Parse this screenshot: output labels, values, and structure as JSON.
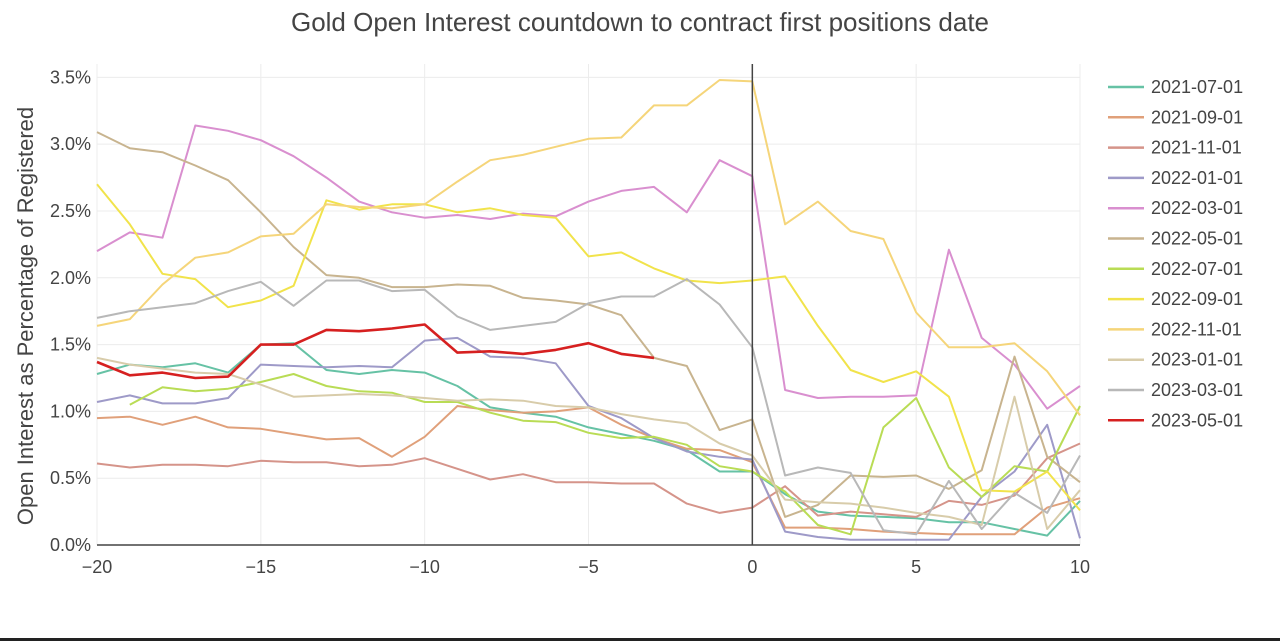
{
  "chart_data": {
    "type": "line",
    "title": "Gold Open Interest countdown to contract first positions date",
    "xlabel": "",
    "ylabel": "Open Interest as Percentage of Registered",
    "xlim": [
      -20,
      10
    ],
    "ylim": [
      0,
      3.6
    ],
    "x_ticks": [
      -20,
      -15,
      -10,
      -5,
      0,
      5,
      10
    ],
    "x_tick_labels": [
      "−20",
      "−15",
      "−10",
      "−5",
      "0",
      "5",
      "10"
    ],
    "y_ticks": [
      0,
      0.5,
      1.0,
      1.5,
      2.0,
      2.5,
      3.0,
      3.5
    ],
    "y_tick_labels": [
      "0.0%",
      "0.5%",
      "1.0%",
      "1.5%",
      "2.0%",
      "2.5%",
      "3.0%",
      "3.5%"
    ],
    "grid": true,
    "vertical_line_at": 0,
    "legend_position": "right",
    "series": [
      {
        "name": "2021-07-01",
        "color": "#66c2a5",
        "x": [
          -20,
          -19,
          -18,
          -17,
          -16,
          -15,
          -14,
          -13,
          -12,
          -11,
          -10,
          -9,
          -8,
          -7,
          -6,
          -5,
          -4,
          -3,
          -2,
          -1,
          0,
          1,
          2,
          3,
          4,
          5,
          6,
          7,
          8,
          9,
          10
        ],
        "values": [
          1.28,
          1.35,
          1.33,
          1.36,
          1.29,
          1.5,
          1.51,
          1.31,
          1.28,
          1.31,
          1.29,
          1.19,
          1.03,
          0.99,
          0.96,
          0.88,
          0.83,
          0.78,
          0.71,
          0.55,
          0.55,
          0.38,
          0.25,
          0.22,
          0.21,
          0.2,
          0.17,
          0.17,
          0.12,
          0.07,
          0.33
        ]
      },
      {
        "name": "2021-09-01",
        "color": "#e0a07a",
        "x": [
          -20,
          -19,
          -18,
          -17,
          -16,
          -15,
          -14,
          -13,
          -12,
          -11,
          -10,
          -9,
          -8,
          -7,
          -6,
          -5,
          -4,
          -3,
          -2,
          -1,
          0,
          1,
          2,
          3,
          4,
          5,
          6,
          7,
          8,
          9,
          10
        ],
        "values": [
          0.95,
          0.96,
          0.9,
          0.96,
          0.88,
          0.87,
          0.83,
          0.79,
          0.8,
          0.66,
          0.81,
          1.04,
          1.01,
          0.99,
          1.0,
          1.03,
          0.9,
          0.8,
          0.72,
          0.71,
          0.62,
          0.13,
          0.13,
          0.12,
          0.1,
          0.09,
          0.08,
          0.08,
          0.08,
          0.28,
          0.35
        ]
      },
      {
        "name": "2021-11-01",
        "color": "#d5948a",
        "x": [
          -20,
          -19,
          -18,
          -17,
          -16,
          -15,
          -14,
          -13,
          -12,
          -11,
          -10,
          -9,
          -8,
          -7,
          -6,
          -5,
          -4,
          -3,
          -2,
          -1,
          0,
          1,
          2,
          3,
          4,
          5,
          6,
          7,
          8,
          9,
          10
        ],
        "values": [
          0.61,
          0.58,
          0.6,
          0.6,
          0.59,
          0.63,
          0.62,
          0.62,
          0.59,
          0.6,
          0.65,
          0.57,
          0.49,
          0.53,
          0.47,
          0.47,
          0.46,
          0.46,
          0.31,
          0.24,
          0.28,
          0.44,
          0.22,
          0.25,
          0.23,
          0.21,
          0.33,
          0.3,
          0.37,
          0.65,
          0.76
        ]
      },
      {
        "name": "2022-01-01",
        "color": "#9e9ac8",
        "x": [
          -20,
          -19,
          -18,
          -17,
          -16,
          -15,
          -14,
          -13,
          -12,
          -11,
          -10,
          -9,
          -8,
          -7,
          -6,
          -5,
          -4,
          -3,
          -2,
          -1,
          0,
          1,
          2,
          3,
          4,
          5,
          6,
          7,
          8,
          9,
          10
        ],
        "values": [
          1.07,
          1.12,
          1.06,
          1.06,
          1.1,
          1.35,
          1.34,
          1.33,
          1.34,
          1.33,
          1.53,
          1.55,
          1.41,
          1.4,
          1.36,
          1.04,
          0.95,
          0.8,
          0.7,
          0.66,
          0.64,
          0.1,
          0.06,
          0.04,
          0.04,
          0.04,
          0.04,
          0.36,
          0.55,
          0.9,
          0.05
        ]
      },
      {
        "name": "2022-03-01",
        "color": "#d98fcf",
        "x": [
          -20,
          -19,
          -18,
          -17,
          -16,
          -15,
          -14,
          -13,
          -12,
          -11,
          -10,
          -9,
          -8,
          -7,
          -6,
          -5,
          -4,
          -3,
          -2,
          -1,
          0,
          1,
          2,
          3,
          4,
          5,
          6,
          7,
          8,
          9,
          10
        ],
        "values": [
          2.2,
          2.34,
          2.3,
          3.14,
          3.1,
          3.03,
          2.91,
          2.75,
          2.57,
          2.49,
          2.45,
          2.47,
          2.44,
          2.48,
          2.46,
          2.57,
          2.65,
          2.68,
          2.49,
          2.88,
          2.76,
          1.16,
          1.1,
          1.11,
          1.11,
          1.12,
          2.21,
          1.55,
          1.35,
          1.02,
          1.19
        ]
      },
      {
        "name": "2022-05-01",
        "color": "#c8b48f",
        "x": [
          -20,
          -19,
          -18,
          -17,
          -16,
          -15,
          -14,
          -13,
          -12,
          -11,
          -10,
          -9,
          -8,
          -7,
          -6,
          -5,
          -4,
          -3,
          -2,
          -1,
          0,
          1,
          2,
          3,
          4,
          5,
          6,
          7,
          8,
          9,
          10
        ],
        "values": [
          3.09,
          2.97,
          2.94,
          2.84,
          2.73,
          2.49,
          2.23,
          2.02,
          2.0,
          1.93,
          1.93,
          1.95,
          1.94,
          1.85,
          1.83,
          1.8,
          1.72,
          1.4,
          1.34,
          0.86,
          0.94,
          0.21,
          0.3,
          0.52,
          0.51,
          0.52,
          0.42,
          0.56,
          1.41,
          0.66,
          0.47
        ]
      },
      {
        "name": "2022-07-01",
        "color": "#b9dc55",
        "x": [
          -19,
          -18,
          -17,
          -16,
          -15,
          -14,
          -13,
          -12,
          -11,
          -10,
          -9,
          -8,
          -7,
          -6,
          -5,
          -4,
          -3,
          -2,
          -1,
          0,
          1,
          2,
          3,
          4,
          5,
          6,
          7,
          8,
          9,
          10
        ],
        "values": [
          1.05,
          1.18,
          1.15,
          1.17,
          1.22,
          1.28,
          1.19,
          1.15,
          1.14,
          1.07,
          1.07,
          0.99,
          0.93,
          0.92,
          0.84,
          0.8,
          0.81,
          0.75,
          0.59,
          0.55,
          0.4,
          0.15,
          0.08,
          0.88,
          1.1,
          0.58,
          0.36,
          0.59,
          0.55,
          1.04
        ]
      },
      {
        "name": "2022-09-01",
        "color": "#f1e34b",
        "x": [
          -20,
          -19,
          -18,
          -17,
          -16,
          -15,
          -14,
          -13,
          -12,
          -11,
          -10,
          -9,
          -8,
          -7,
          -6,
          -5,
          -4,
          -3,
          -2,
          -1,
          0,
          1,
          2,
          3,
          4,
          5,
          6,
          7,
          8,
          9,
          10
        ],
        "values": [
          2.7,
          2.4,
          2.03,
          1.99,
          1.78,
          1.83,
          1.94,
          2.58,
          2.51,
          2.55,
          2.55,
          2.49,
          2.52,
          2.47,
          2.45,
          2.16,
          2.19,
          2.07,
          1.98,
          1.96,
          1.98,
          2.01,
          1.64,
          1.31,
          1.22,
          1.3,
          1.11,
          0.41,
          0.4,
          0.55,
          0.26
        ]
      },
      {
        "name": "2022-11-01",
        "color": "#f5d57a",
        "x": [
          -20,
          -19,
          -18,
          -17,
          -16,
          -15,
          -14,
          -13,
          -12,
          -11,
          -10,
          -9,
          -8,
          -7,
          -6,
          -5,
          -4,
          -3,
          -2,
          -1,
          0,
          1,
          2,
          3,
          4,
          5,
          6,
          7,
          8,
          9,
          10
        ],
        "values": [
          1.64,
          1.69,
          1.95,
          2.15,
          2.19,
          2.31,
          2.33,
          2.55,
          2.53,
          2.52,
          2.55,
          2.72,
          2.88,
          2.92,
          2.98,
          3.04,
          3.05,
          3.29,
          3.29,
          3.48,
          3.47,
          2.4,
          2.57,
          2.35,
          2.29,
          1.74,
          1.48,
          1.48,
          1.51,
          1.3,
          0.97
        ]
      },
      {
        "name": "2023-01-01",
        "color": "#d8ccaa",
        "x": [
          -20,
          -19,
          -18,
          -17,
          -16,
          -15,
          -14,
          -13,
          -12,
          -11,
          -10,
          -9,
          -8,
          -7,
          -6,
          -5,
          -4,
          -3,
          -2,
          -1,
          0,
          1,
          2,
          3,
          4,
          5,
          6,
          7,
          8,
          9,
          10
        ],
        "values": [
          1.4,
          1.35,
          1.32,
          1.29,
          1.28,
          1.2,
          1.11,
          1.12,
          1.13,
          1.12,
          1.1,
          1.08,
          1.09,
          1.08,
          1.04,
          1.03,
          0.98,
          0.94,
          0.91,
          0.76,
          0.67,
          0.34,
          0.32,
          0.31,
          0.28,
          0.24,
          0.21,
          0.15,
          1.11,
          0.12,
          0.41
        ]
      },
      {
        "name": "2023-03-01",
        "color": "#b8b8b8",
        "x": [
          -20,
          -19,
          -18,
          -17,
          -16,
          -15,
          -14,
          -13,
          -12,
          -11,
          -10,
          -9,
          -8,
          -7,
          -6,
          -5,
          -4,
          -3,
          -2,
          -1,
          0,
          1,
          2,
          3,
          4,
          5,
          6,
          7,
          8,
          9,
          10
        ],
        "values": [
          1.7,
          1.75,
          1.78,
          1.81,
          1.9,
          1.97,
          1.79,
          1.98,
          1.98,
          1.9,
          1.91,
          1.71,
          1.61,
          1.64,
          1.67,
          1.81,
          1.86,
          1.86,
          1.99,
          1.8,
          1.48,
          0.52,
          0.58,
          0.54,
          0.11,
          0.08,
          0.48,
          0.12,
          0.39,
          0.24,
          0.67
        ]
      },
      {
        "name": "2023-05-01",
        "color": "#d62020",
        "x": [
          -20,
          -19,
          -18,
          -17,
          -16,
          -15,
          -14,
          -13,
          -12,
          -11,
          -10,
          -9,
          -8,
          -7,
          -6,
          -5,
          -4,
          -3
        ],
        "values": [
          1.37,
          1.27,
          1.29,
          1.25,
          1.26,
          1.5,
          1.5,
          1.61,
          1.6,
          1.62,
          1.65,
          1.44,
          1.45,
          1.43,
          1.46,
          1.51,
          1.43,
          1.4
        ]
      }
    ]
  }
}
